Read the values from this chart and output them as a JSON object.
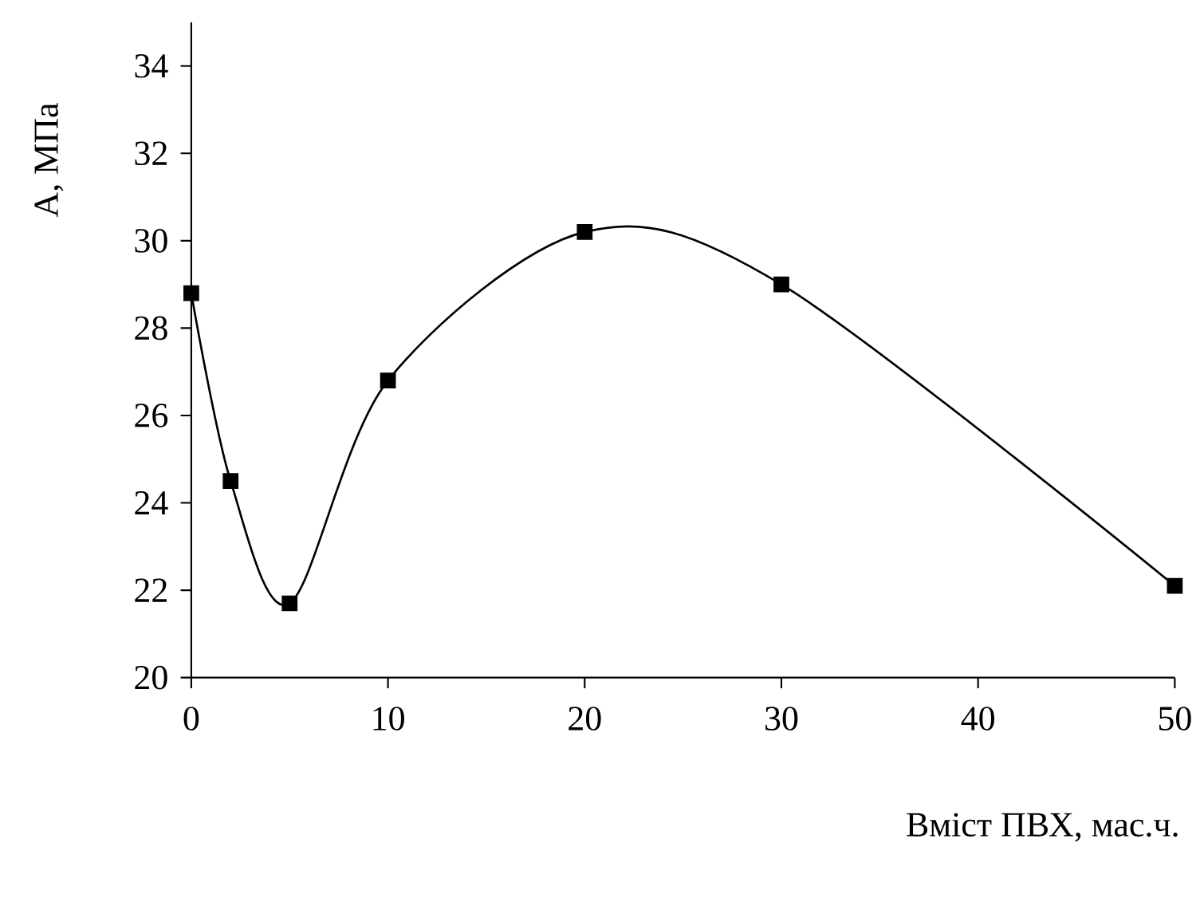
{
  "chart_data": {
    "type": "line",
    "xlabel": "Вміст ПВХ, мас.ч.",
    "ylabel": "A, МПа",
    "x": [
      0,
      2,
      5,
      10,
      20,
      30,
      50
    ],
    "series": [
      {
        "color": "#000000",
        "values": [
          28.8,
          24.5,
          21.7,
          26.8,
          30.2,
          29.0,
          22.1
        ]
      }
    ],
    "xlim": [
      0,
      50
    ],
    "xticks": [
      0,
      10,
      20,
      30,
      40,
      50
    ],
    "ylim": [
      20,
      35
    ],
    "yticks": [
      20,
      22,
      24,
      26,
      28,
      30,
      32,
      34
    ],
    "grid": false,
    "marker": "square",
    "line_style": "solid"
  }
}
